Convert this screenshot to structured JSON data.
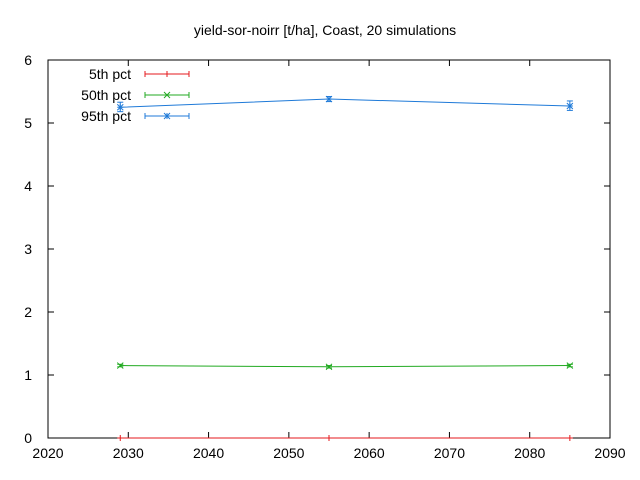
{
  "chart_data": {
    "type": "line",
    "title": "yield-sor-noirr [t/ha], Coast, 20 simulations",
    "xlabel": "",
    "ylabel": "",
    "xlim": [
      2020,
      2090
    ],
    "ylim": [
      0,
      6
    ],
    "xticks": [
      2020,
      2030,
      2040,
      2050,
      2060,
      2070,
      2080,
      2090
    ],
    "yticks": [
      0,
      1,
      2,
      3,
      4,
      5,
      6
    ],
    "grid": false,
    "legend_position": "top-left",
    "x": [
      2029,
      2055,
      2085
    ],
    "series": [
      {
        "name": "5th pct",
        "color": "#e41a1c",
        "marker": "plus",
        "values": [
          0.0,
          0.0,
          0.0
        ],
        "err_low": [
          0.0,
          0.0,
          0.0
        ],
        "err_high": [
          0.0,
          0.0,
          0.0
        ]
      },
      {
        "name": "50th pct",
        "color": "#22aa22",
        "marker": "cross",
        "values": [
          1.15,
          1.13,
          1.15
        ],
        "err_low": [
          1.13,
          1.11,
          1.13
        ],
        "err_high": [
          1.17,
          1.15,
          1.17
        ]
      },
      {
        "name": "95th pct",
        "color": "#1f7ad8",
        "marker": "star",
        "values": [
          5.25,
          5.38,
          5.27
        ],
        "err_low": [
          5.18,
          5.34,
          5.2
        ],
        "err_high": [
          5.33,
          5.42,
          5.35
        ]
      }
    ]
  }
}
